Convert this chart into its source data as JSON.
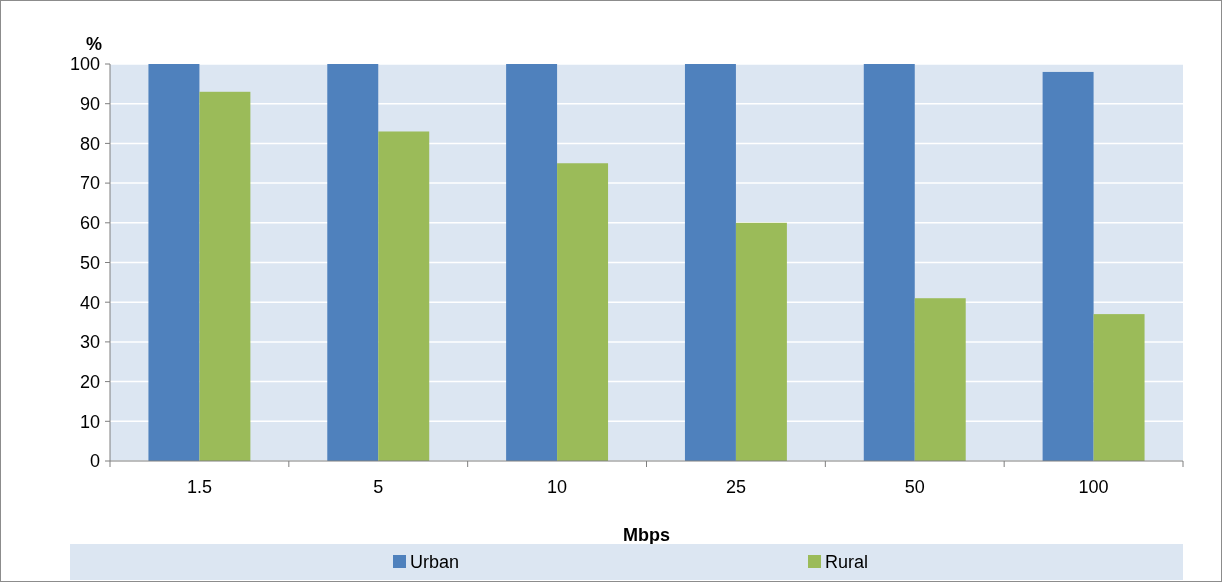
{
  "chart_data": {
    "type": "bar",
    "xlabel": "Mbps",
    "ylabel": "%",
    "categories": [
      "1.5",
      "5",
      "10",
      "25",
      "50",
      "100"
    ],
    "series": [
      {
        "name": "Urban",
        "color": "#4f81bd",
        "values": [
          100,
          100,
          100,
          100,
          100,
          98
        ]
      },
      {
        "name": "Rural",
        "color": "#9bbb59",
        "values": [
          93,
          83,
          75,
          60,
          41,
          37
        ]
      }
    ],
    "ylim": [
      0,
      100
    ],
    "yticks": [
      0,
      10,
      20,
      30,
      40,
      50,
      60,
      70,
      80,
      90,
      100
    ],
    "grid": "y",
    "legend": "bottom"
  }
}
